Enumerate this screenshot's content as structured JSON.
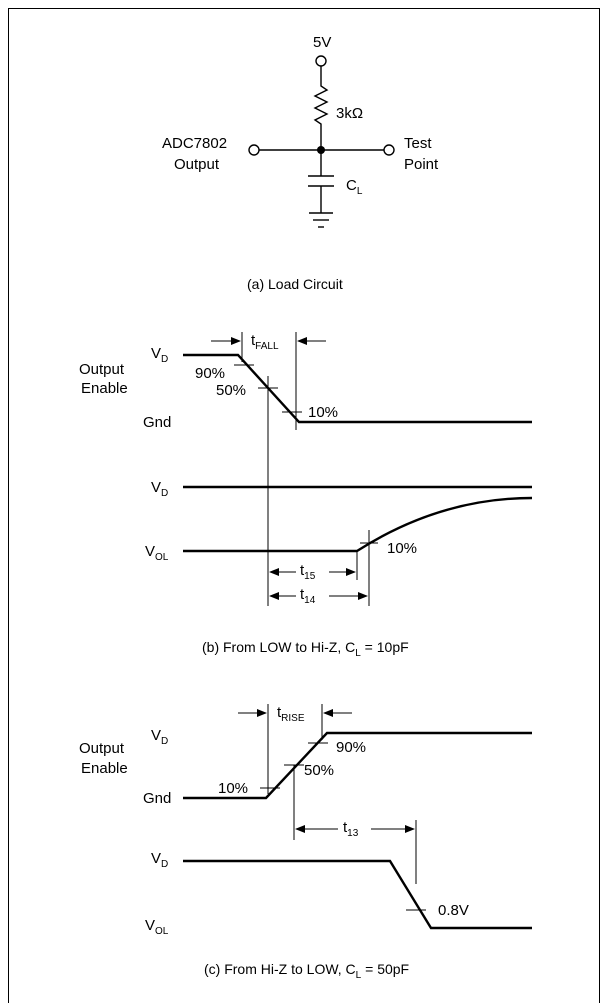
{
  "load_circuit": {
    "supply": "5V",
    "resistor": "3kΩ",
    "source_line1": "ADC7802",
    "source_line2": "Output",
    "test_line1": "Test",
    "test_line2": "Point",
    "cap_main": "C",
    "cap_sub": "L",
    "caption": "(a) Load Circuit"
  },
  "panel_b": {
    "oe_line1": "Output",
    "oe_line2": "Enable",
    "vd_main": "V",
    "vd_sub": "D",
    "gnd": "Gnd",
    "vd2_main": "V",
    "vd2_sub": "D",
    "vol_main": "V",
    "vol_sub": "OL",
    "tfall_main": "t",
    "tfall_sub": "FALL",
    "pct90": "90%",
    "pct50": "50%",
    "pct10": "10%",
    "out_pct10": "10%",
    "t15_main": "t",
    "t15_sub": "15",
    "t14_main": "t",
    "t14_sub": "14",
    "caption_main": "(b) From LOW to Hi-Z, C",
    "caption_sub": "L",
    "caption_tail": " = 10pF"
  },
  "panel_c": {
    "oe_line1": "Output",
    "oe_line2": "Enable",
    "vd_main": "V",
    "vd_sub": "D",
    "gnd": "Gnd",
    "vd2_main": "V",
    "vd2_sub": "D",
    "vol_main": "V",
    "vol_sub": "OL",
    "trise_main": "t",
    "trise_sub": "RISE",
    "pct10": "10%",
    "pct50": "50%",
    "pct90": "90%",
    "t13_main": "t",
    "t13_sub": "13",
    "out_level": "0.8V",
    "caption_main": "(c) From Hi-Z to LOW, C",
    "caption_sub": "L",
    "caption_tail": " = 50pF"
  }
}
